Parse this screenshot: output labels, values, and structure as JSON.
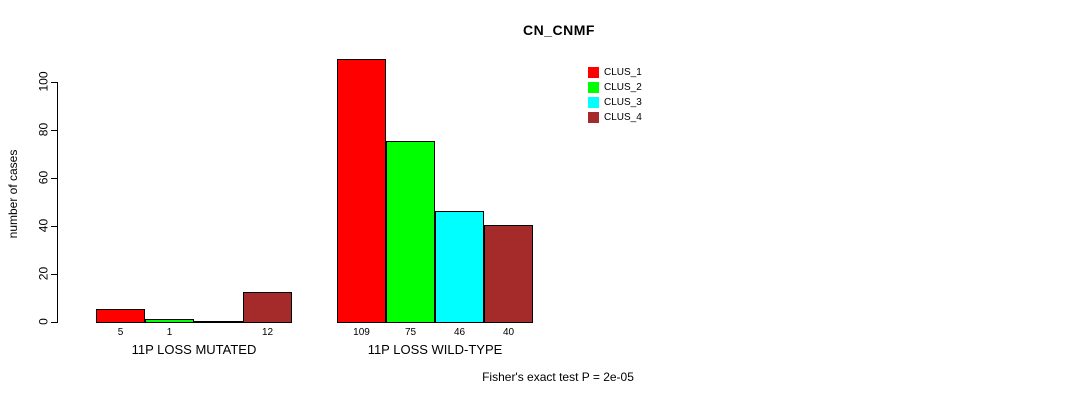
{
  "chart_data": {
    "type": "bar",
    "title": "CN_CNMF",
    "ylabel": "number of cases",
    "xlabel": "",
    "categories": [
      "11P LOSS MUTATED",
      "11P LOSS WILD-TYPE"
    ],
    "series": [
      {
        "name": "CLUS_1",
        "color": "#ff0000",
        "values": [
          5,
          109
        ]
      },
      {
        "name": "CLUS_2",
        "color": "#00ff00",
        "values": [
          1,
          75
        ]
      },
      {
        "name": "CLUS_3",
        "color": "#00ffff",
        "values": [
          0,
          46
        ]
      },
      {
        "name": "CLUS_4",
        "color": "#a52a2a",
        "values": [
          12,
          40
        ]
      }
    ],
    "bar_value_labels": [
      [
        "5",
        "1",
        "",
        "12"
      ],
      [
        "109",
        "75",
        "46",
        "40"
      ]
    ],
    "yticks": [
      0,
      20,
      40,
      60,
      80,
      100
    ],
    "ylim": [
      0,
      112
    ],
    "grid": false,
    "bar_border_color": "#000000",
    "legend_position": "inside-top-right-of-plot",
    "annotation": "Fisher's exact test P = 2e-05"
  }
}
